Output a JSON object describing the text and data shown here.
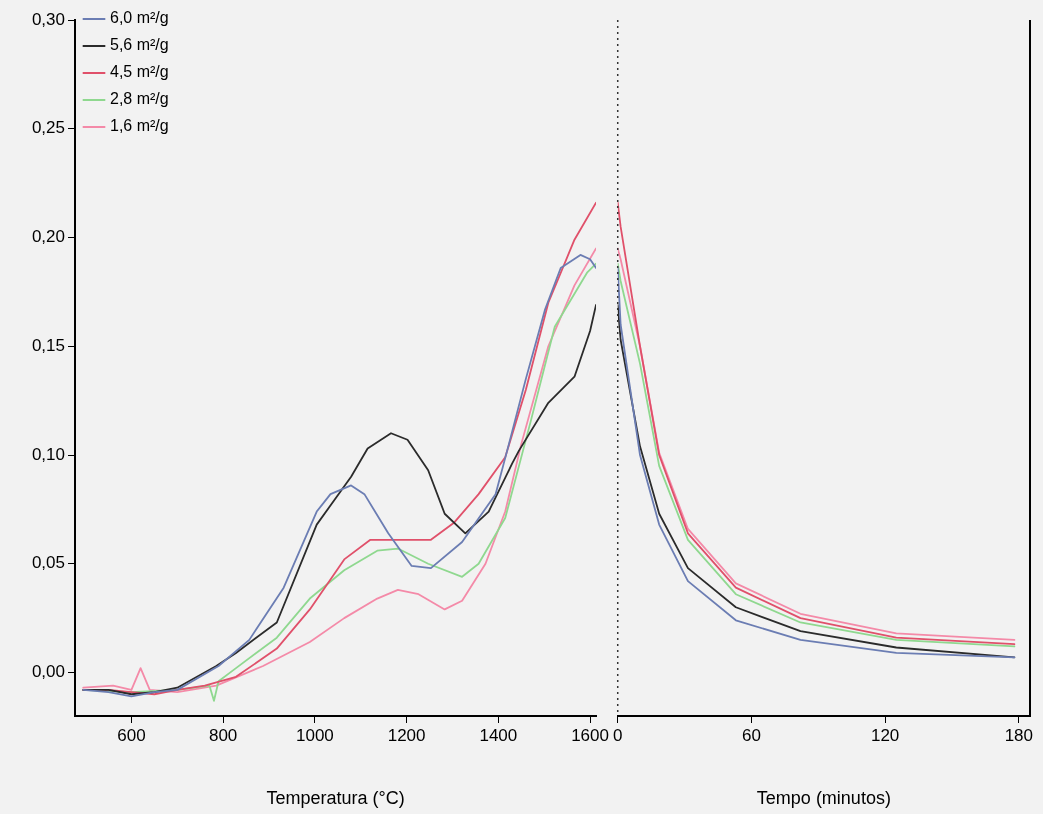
{
  "chart_data": [
    {
      "type": "line",
      "xlabel": "Temperatura (°C)",
      "xlim": [
        477,
        1613
      ],
      "xticks": [
        600,
        800,
        1000,
        1200,
        1400,
        1600
      ],
      "ylim": [
        -0.02,
        0.3
      ],
      "yticks": [
        {
          "value": 0,
          "label": "0,00"
        },
        {
          "value": 0.05,
          "label": "0,05"
        },
        {
          "value": 0.1,
          "label": "0,10"
        },
        {
          "value": 0.15,
          "label": "0,15"
        },
        {
          "value": 0.2,
          "label": "0,20"
        },
        {
          "value": 0.25,
          "label": "0,25"
        },
        {
          "value": 0.3,
          "label": "0,30"
        }
      ],
      "legend": "top left",
      "marker": "none",
      "grid": false,
      "series": [
        {
          "name": "6,0 m²/g",
          "color": "#6b7db3",
          "x": [
            495,
            550,
            600,
            650,
            700,
            790,
            857,
            932,
            1004,
            1034,
            1079,
            1108,
            1160,
            1211,
            1253,
            1321,
            1394,
            1423,
            1460,
            1502,
            1536,
            1579,
            1600,
            1613
          ],
          "values": [
            -0.008,
            -0.009,
            -0.011,
            -0.009,
            -0.008,
            0.003,
            0.015,
            0.039,
            0.074,
            0.082,
            0.086,
            0.082,
            0.064,
            0.049,
            0.048,
            0.06,
            0.082,
            0.105,
            0.135,
            0.167,
            0.186,
            0.192,
            0.19,
            0.186
          ]
        },
        {
          "name": "5,6 m²/g",
          "color": "#2b2b2b",
          "x": [
            495,
            550,
            600,
            650,
            700,
            785,
            828,
            917,
            1004,
            1079,
            1115,
            1166,
            1202,
            1247,
            1283,
            1328,
            1379,
            1430,
            1445,
            1509,
            1566,
            1600,
            1613
          ],
          "values": [
            -0.008,
            -0.008,
            -0.01,
            -0.009,
            -0.007,
            0.003,
            0.009,
            0.023,
            0.068,
            0.09,
            0.103,
            0.11,
            0.107,
            0.093,
            0.073,
            0.064,
            0.074,
            0.096,
            0.102,
            0.124,
            0.136,
            0.157,
            0.169
          ]
        },
        {
          "name": "4,5 m²/g",
          "color": "#e0506a",
          "x": [
            495,
            550,
            600,
            650,
            700,
            760,
            828,
            917,
            989,
            1064,
            1121,
            1181,
            1253,
            1304,
            1357,
            1415,
            1460,
            1509,
            1566,
            1613
          ],
          "values": [
            -0.008,
            -0.008,
            -0.009,
            -0.01,
            -0.008,
            -0.006,
            -0.002,
            0.011,
            0.029,
            0.052,
            0.061,
            0.061,
            0.061,
            0.069,
            0.082,
            0.099,
            0.13,
            0.17,
            0.199,
            0.216
          ]
        },
        {
          "name": "2,8 m²/g",
          "color": "#8fd88f",
          "x": [
            495,
            600,
            700,
            770,
            780,
            790,
            828,
            917,
            989,
            1064,
            1136,
            1181,
            1247,
            1321,
            1357,
            1415,
            1470,
            1523,
            1594,
            1613
          ],
          "values": [
            -0.008,
            -0.009,
            -0.008,
            -0.006,
            -0.013,
            -0.004,
            0.002,
            0.016,
            0.034,
            0.047,
            0.056,
            0.057,
            0.05,
            0.044,
            0.05,
            0.071,
            0.115,
            0.159,
            0.184,
            0.188
          ]
        },
        {
          "name": "1,6 m²/g",
          "color": "#f48aa8",
          "x": [
            495,
            560,
            600,
            620,
            640,
            700,
            785,
            887,
            989,
            1064,
            1136,
            1181,
            1226,
            1283,
            1321,
            1372,
            1415,
            1450,
            1509,
            1566,
            1613
          ],
          "values": [
            -0.007,
            -0.006,
            -0.008,
            0.002,
            -0.008,
            -0.009,
            -0.006,
            0.003,
            0.014,
            0.025,
            0.034,
            0.038,
            0.036,
            0.029,
            0.033,
            0.05,
            0.074,
            0.105,
            0.15,
            0.178,
            0.195
          ]
        }
      ]
    },
    {
      "type": "line",
      "xlabel": "Tempo (minutos)",
      "xlim": [
        0,
        185
      ],
      "xticks": [
        0,
        60,
        120,
        180
      ],
      "ylim": [
        -0.02,
        0.3
      ],
      "tick_labels": "x",
      "marker": "none",
      "grid": false,
      "ref_lines": [
        {
          "axis": "x",
          "value": 0,
          "line_style": "dotted",
          "color": "#333333"
        }
      ],
      "series": [
        {
          "color": "#6b7db3",
          "x": [
            0,
            1.3,
            10,
            18.6,
            31.5,
            53,
            82,
            125,
            178
          ],
          "values": [
            0.186,
            0.16,
            0.1,
            0.068,
            0.042,
            0.024,
            0.015,
            0.009,
            0.007
          ]
        },
        {
          "color": "#2b2b2b",
          "x": [
            0,
            1.3,
            10,
            18.6,
            31.5,
            53,
            82,
            125,
            178
          ],
          "values": [
            0.169,
            0.153,
            0.104,
            0.073,
            0.048,
            0.03,
            0.019,
            0.0115,
            0.007
          ]
        },
        {
          "color": "#e0506a",
          "x": [
            0,
            1.3,
            10,
            18.6,
            31.5,
            53,
            82,
            125,
            178
          ],
          "values": [
            0.216,
            0.205,
            0.15,
            0.1,
            0.064,
            0.039,
            0.025,
            0.016,
            0.013
          ]
        },
        {
          "color": "#8fd88f",
          "x": [
            0,
            1.3,
            10,
            18.6,
            31.5,
            53,
            82,
            125,
            178
          ],
          "values": [
            0.188,
            0.18,
            0.142,
            0.095,
            0.061,
            0.036,
            0.023,
            0.015,
            0.012
          ]
        },
        {
          "color": "#f48aa8",
          "x": [
            0,
            1.3,
            10,
            18.6,
            31.5,
            53,
            82,
            125,
            178
          ],
          "values": [
            0.195,
            0.19,
            0.15,
            0.101,
            0.066,
            0.041,
            0.027,
            0.018,
            0.015
          ]
        }
      ]
    }
  ]
}
